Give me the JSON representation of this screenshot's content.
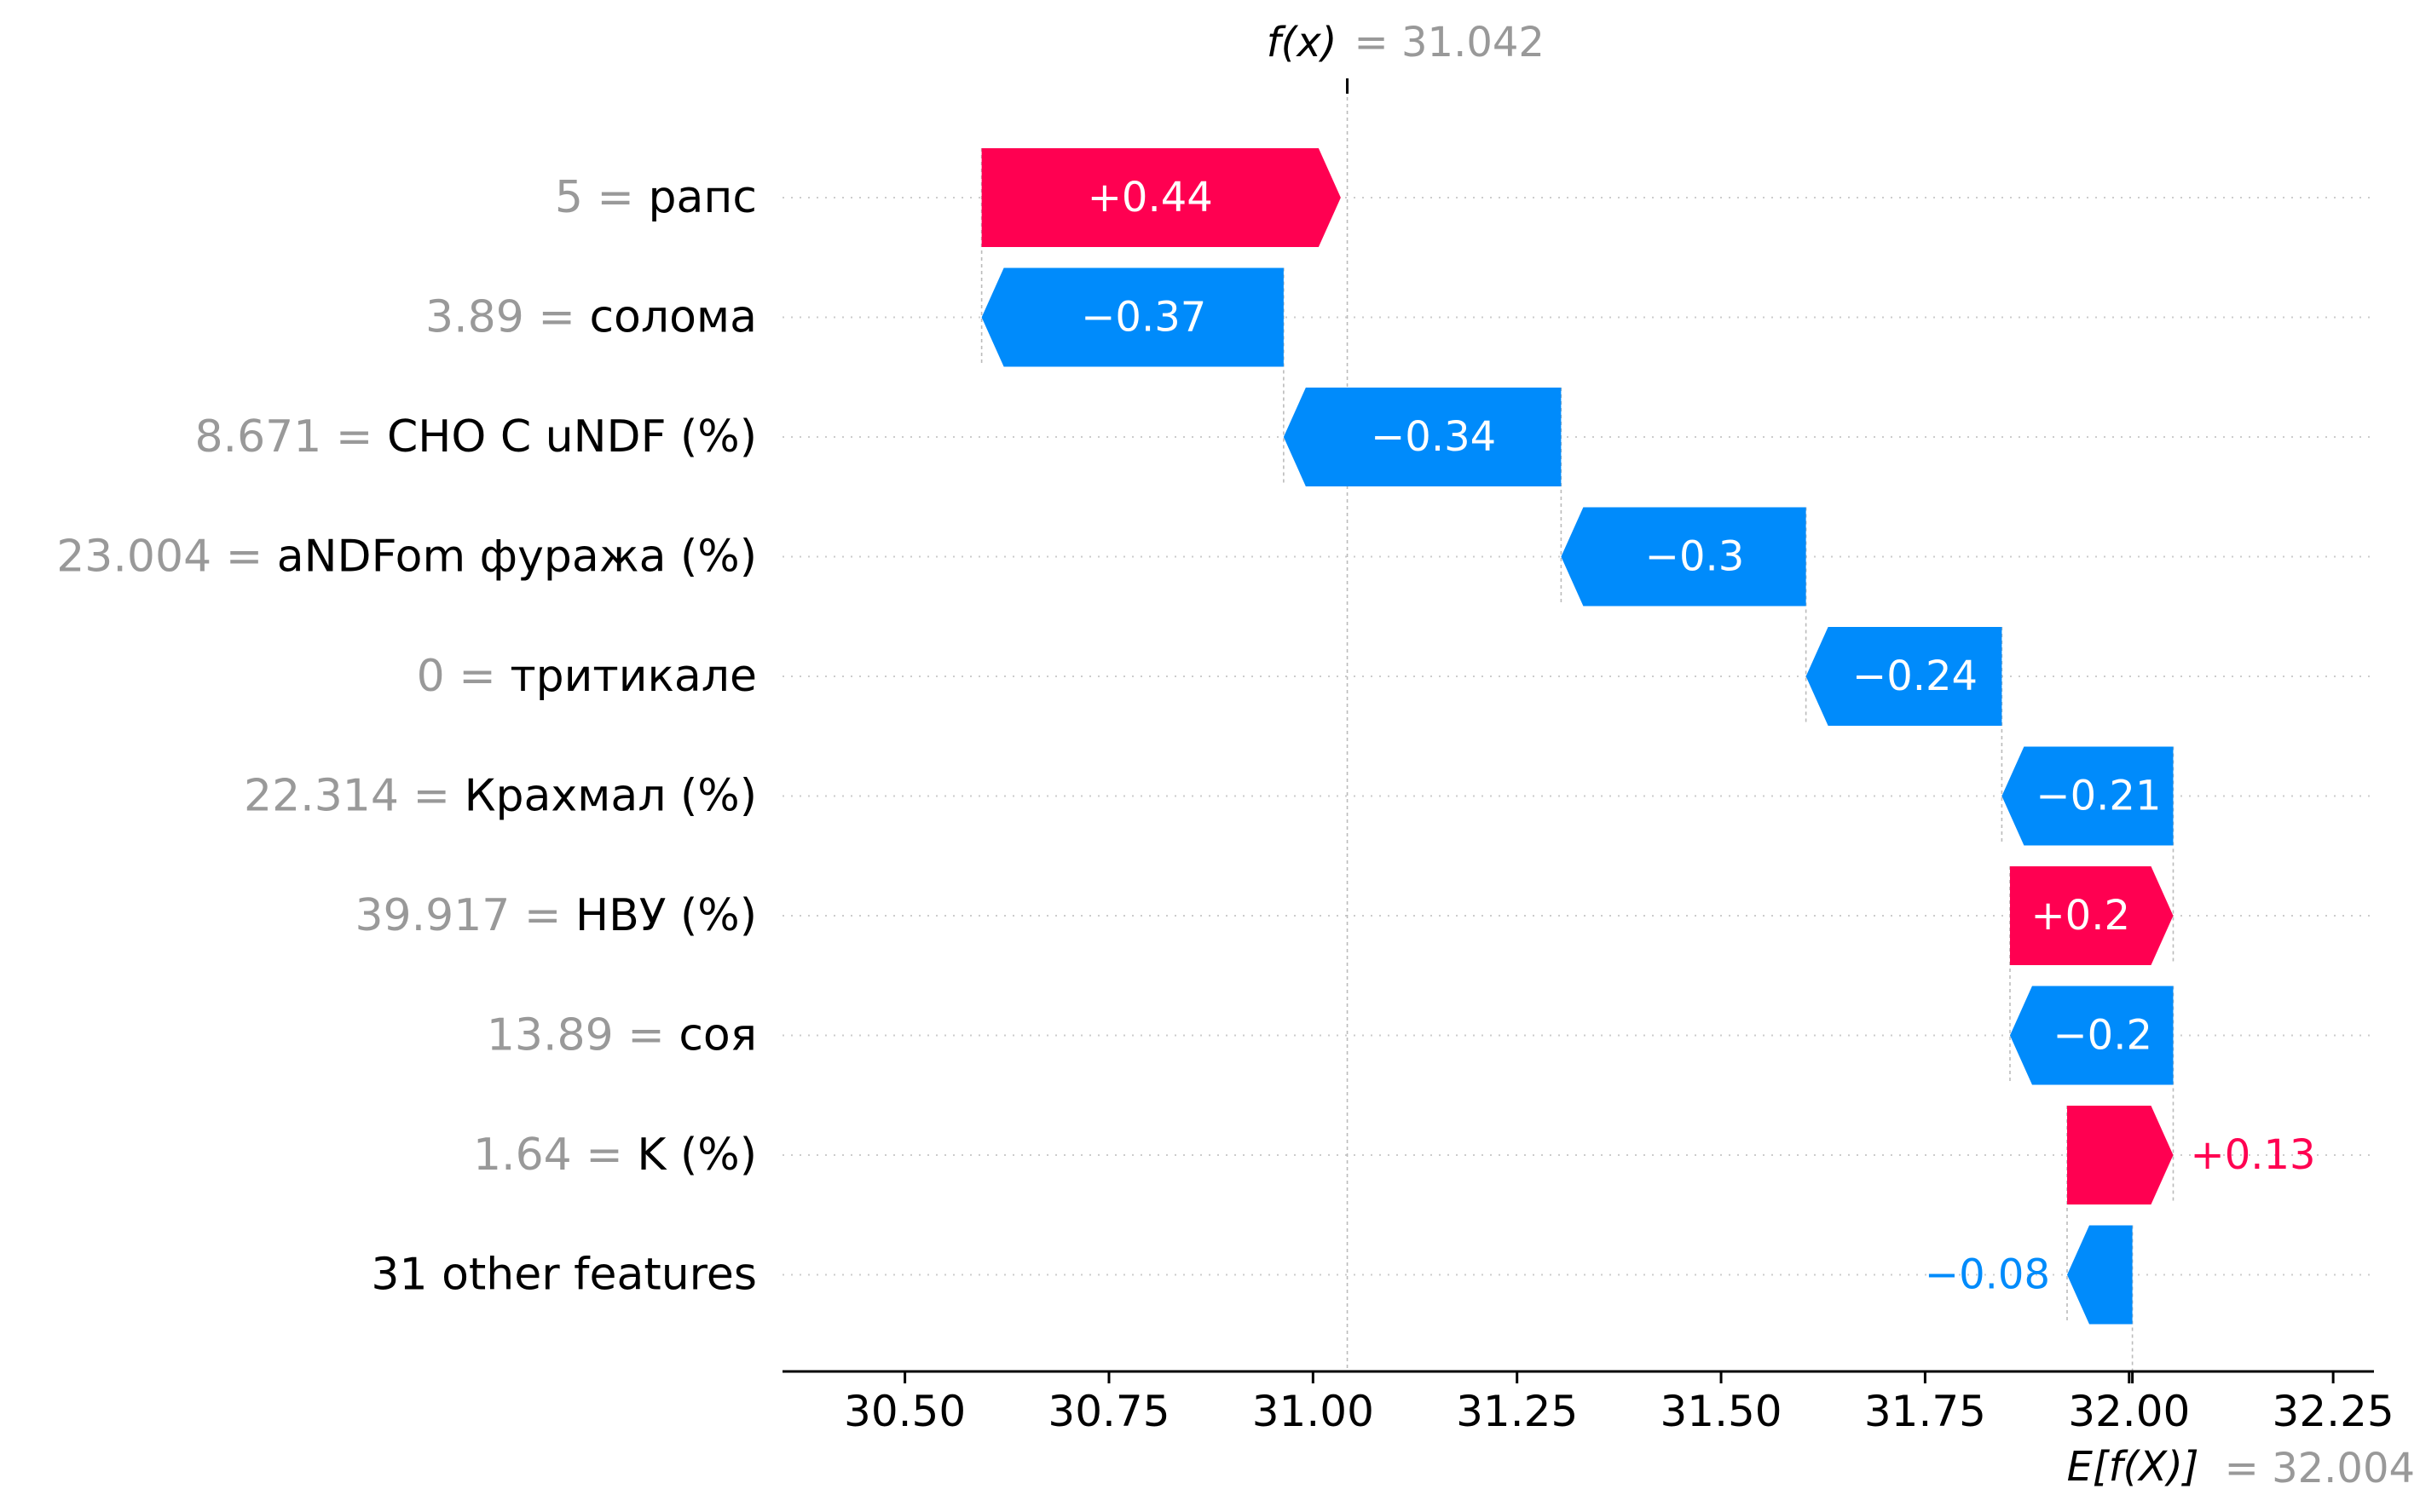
{
  "chart_data": {
    "type": "waterfall",
    "fx": {
      "label": "f(x)",
      "value": "31.042",
      "x": 31.042
    },
    "efx": {
      "label": "E[f(X)]",
      "value": "32.004",
      "x": 32.004
    },
    "xlim": [
      30.35,
      32.3
    ],
    "xticks": [
      30.5,
      30.75,
      31.0,
      31.25,
      31.5,
      31.75,
      32.0,
      32.25
    ],
    "xtick_labels": [
      "30.50",
      "30.75",
      "31.00",
      "31.25",
      "31.50",
      "31.75",
      "32.00",
      "32.25"
    ],
    "colors": {
      "positive": "#ff0051",
      "negative": "#008bfb",
      "muted": "#999999",
      "text": "#000000"
    },
    "features": [
      {
        "value": "5",
        "name": "рапс",
        "contribution": 0.44,
        "label": "+0.44"
      },
      {
        "value": "3.89",
        "name": "солома",
        "contribution": -0.37,
        "label": "−0.37"
      },
      {
        "value": "8.671",
        "name": "CHO C uNDF (%)",
        "contribution": -0.34,
        "label": "−0.34"
      },
      {
        "value": "23.004",
        "name": "aNDFom фуража (%)",
        "contribution": -0.3,
        "label": "−0.3"
      },
      {
        "value": "0",
        "name": "тритикале",
        "contribution": -0.24,
        "label": "−0.24"
      },
      {
        "value": "22.314",
        "name": "Крахмал (%)",
        "contribution": -0.21,
        "label": "−0.21"
      },
      {
        "value": "39.917",
        "name": "НВУ (%)",
        "contribution": 0.2,
        "label": "+0.2"
      },
      {
        "value": "13.89",
        "name": "соя",
        "contribution": -0.2,
        "label": "−0.2"
      },
      {
        "value": "1.64",
        "name": "K (%)",
        "contribution": 0.13,
        "label": "+0.13"
      },
      {
        "value": "",
        "name": "31 other features",
        "contribution": -0.08,
        "label": "−0.08"
      }
    ]
  }
}
